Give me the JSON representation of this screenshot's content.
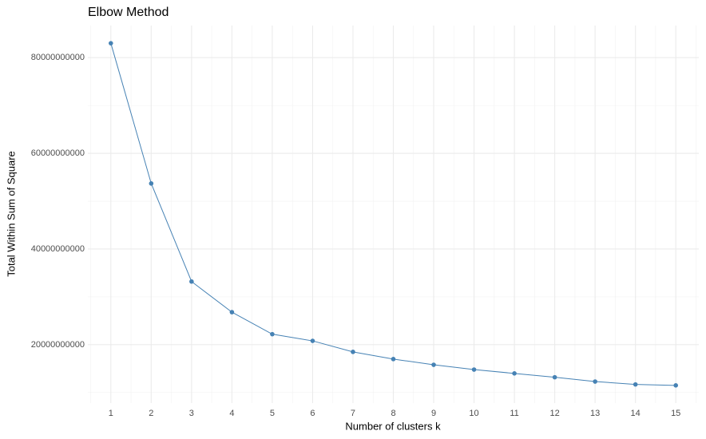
{
  "chart_data": {
    "type": "line",
    "title": "Elbow Method",
    "x_label": "Number of clusters k",
    "y_label": "Total Within Sum of Square",
    "x": [
      1,
      2,
      3,
      4,
      5,
      6,
      7,
      8,
      9,
      10,
      11,
      12,
      13,
      14,
      15
    ],
    "series": [
      {
        "color": "#4682b4",
        "values": [
          83000000000,
          53700000000,
          33200000000,
          26800000000,
          22200000000,
          20800000000,
          18500000000,
          17000000000,
          15800000000,
          14800000000,
          14000000000,
          13200000000,
          12300000000,
          11700000000,
          11500000000
        ]
      }
    ],
    "xlim": [
      0.43,
      15.57
    ],
    "xticks": [
      1,
      2,
      3,
      4,
      5,
      6,
      7,
      8,
      9,
      10,
      11,
      12,
      13,
      14,
      15
    ],
    "ylim": [
      7800000000,
      86700000000
    ],
    "yticks": [
      20000000000,
      40000000000,
      60000000000,
      80000000000
    ],
    "grid": true,
    "minor_grid": true
  }
}
